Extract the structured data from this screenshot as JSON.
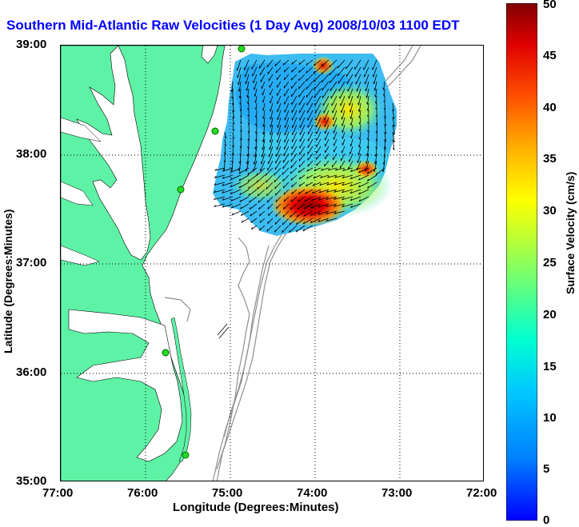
{
  "title": "Southern Mid-Atlantic Raw Velocities (1 Day Avg) 2008/10/03 1100 EDT",
  "x_axis": {
    "label": "Longitude (Degrees:Minutes)",
    "ticks": [
      "77:00",
      "76:00",
      "75:00",
      "74:00",
      "73:00",
      "72:00"
    ]
  },
  "y_axis": {
    "label": "Latitude (Degrees:Minutes)",
    "ticks": [
      "39:00",
      "38:00",
      "37:00",
      "36:00",
      "35:00"
    ]
  },
  "colorbar": {
    "label": "Surface Velocity (cm/s)",
    "ticks": [
      "50",
      "45",
      "40",
      "35",
      "30",
      "25",
      "20",
      "15",
      "10",
      "5",
      "0"
    ],
    "min": 0,
    "max": 50,
    "colormap": "jet"
  },
  "colors": {
    "land": "#5ef2a6",
    "title": "#0000ff",
    "station": "#22dd22",
    "bathymetry": "#909090"
  }
}
